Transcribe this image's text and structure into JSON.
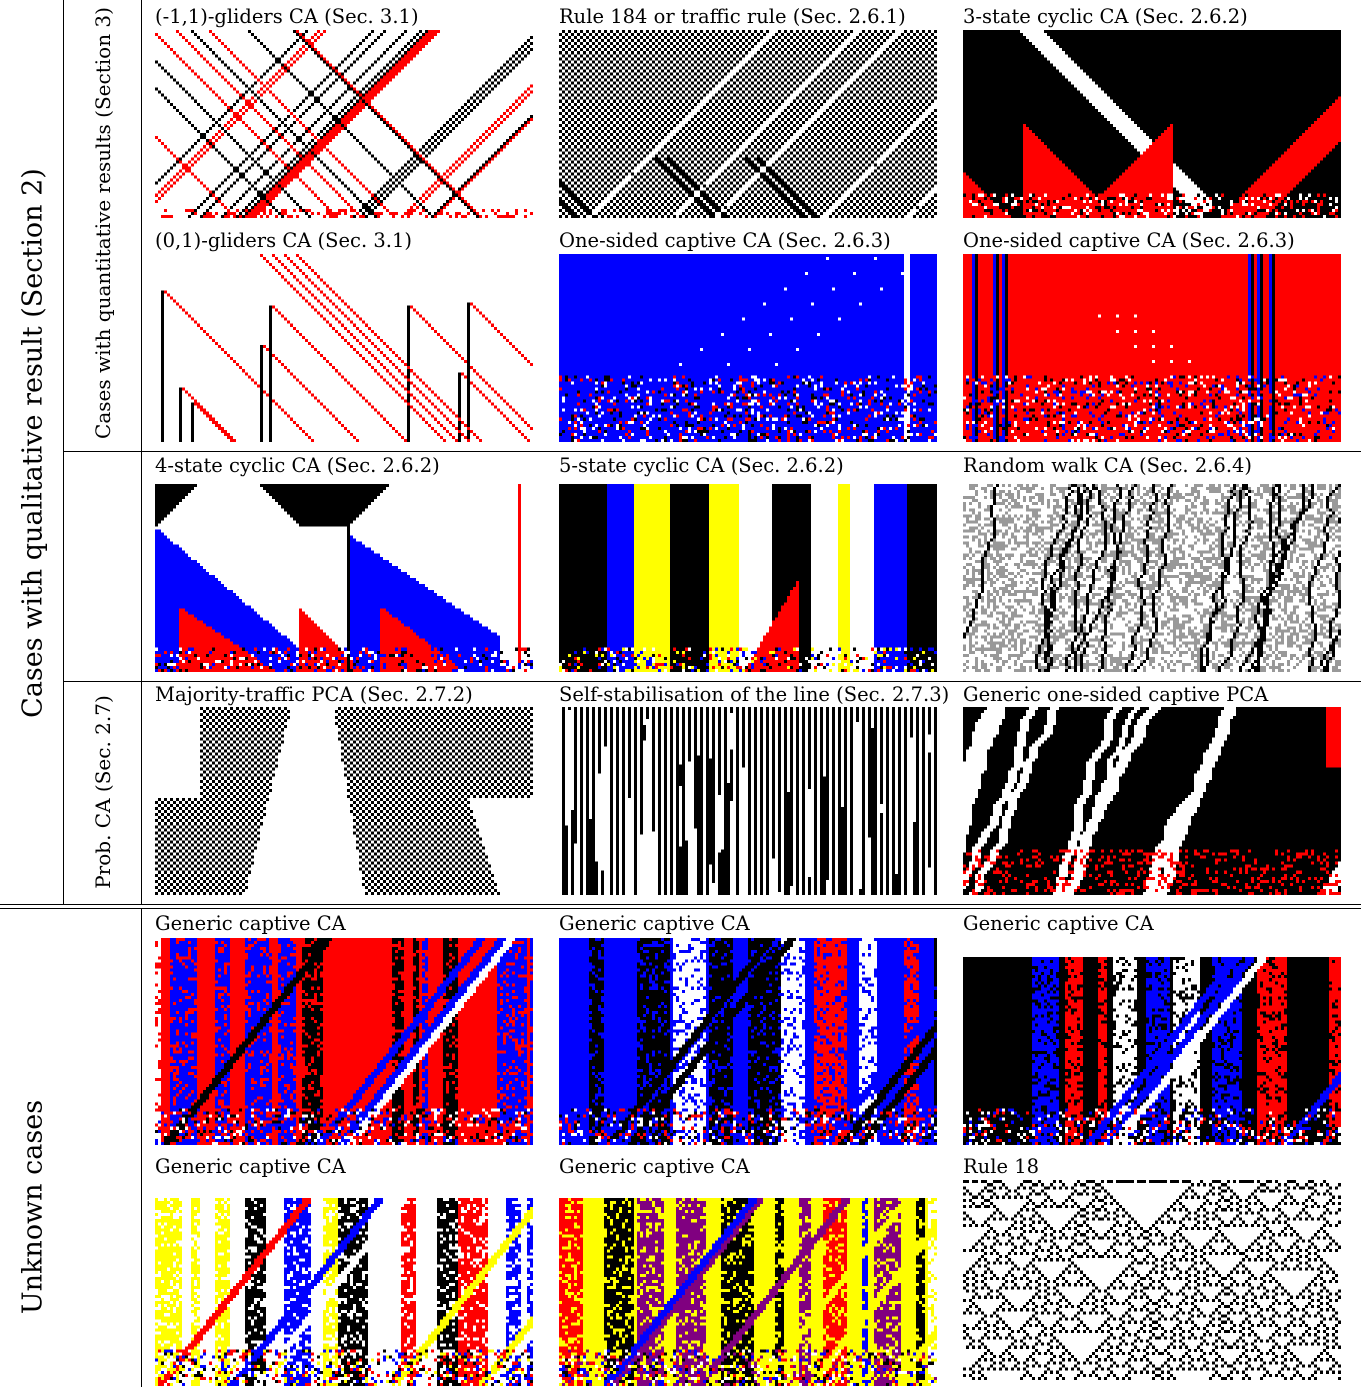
{
  "outer_labels": {
    "qualitative": "Cases with qualitative result (Section 2)",
    "unknown": "Unknown cases"
  },
  "inner_labels": {
    "quantitative": "Cases with quantitative results (Section 3)",
    "probabilistic": "Prob. CA (Sec. 2.7)"
  },
  "panels": [
    {
      "title": "(-1,1)-gliders CA (Sec. 3.1)",
      "style": "gliders-diag",
      "palette": [
        "#ffffff",
        "#000000",
        "#ff0000"
      ]
    },
    {
      "title": "Rule 184 or traffic rule (Sec. 2.6.1)",
      "style": "traffic",
      "palette": [
        "#ffffff",
        "#000000"
      ]
    },
    {
      "title": "3-state cyclic CA (Sec. 2.6.2)",
      "style": "cyclic3",
      "palette": [
        "#ffffff",
        "#000000",
        "#ff0000"
      ]
    },
    {
      "title": "(0,1)-gliders CA (Sec. 3.1)",
      "style": "gliders-vert",
      "palette": [
        "#ffffff",
        "#000000",
        "#ff0000"
      ]
    },
    {
      "title": "One-sided captive CA (Sec. 2.6.3)",
      "style": "captive-blue",
      "palette": [
        "#ffffff",
        "#000000",
        "#ff0000",
        "#0000ff"
      ]
    },
    {
      "title": "One-sided captive CA (Sec. 2.6.3)",
      "style": "captive-red",
      "palette": [
        "#ffffff",
        "#000000",
        "#ff0000",
        "#0000ff"
      ]
    },
    {
      "title": "4-state cyclic CA (Sec. 2.6.2)",
      "style": "cyclic4",
      "palette": [
        "#ffffff",
        "#000000",
        "#0000ff",
        "#ff0000"
      ]
    },
    {
      "title": "5-state cyclic CA (Sec. 2.6.2)",
      "style": "cyclic5",
      "palette": [
        "#ffffff",
        "#000000",
        "#0000ff",
        "#ff0000",
        "#ffff00"
      ]
    },
    {
      "title": "Random walk CA (Sec. 2.6.4)",
      "style": "randomwalk",
      "palette": [
        "#ffffff",
        "#000000",
        "#999999"
      ]
    },
    {
      "title": "Majority-traffic PCA (Sec. 2.7.2)",
      "style": "majority",
      "palette": [
        "#ffffff",
        "#000000"
      ]
    },
    {
      "title": "Self-stabilisation of the line (Sec. 2.7.3)",
      "style": "selfstab",
      "palette": [
        "#ffffff",
        "#000000"
      ]
    },
    {
      "title": "Generic one-sided captive PCA",
      "style": "pca-captive",
      "palette": [
        "#ffffff",
        "#000000",
        "#ff0000"
      ]
    },
    {
      "title": "Generic captive CA",
      "style": "captive-a",
      "palette": [
        "#ffffff",
        "#000000",
        "#ff0000",
        "#0000ff"
      ]
    },
    {
      "title": "Generic captive CA",
      "style": "captive-b",
      "palette": [
        "#ffffff",
        "#000000",
        "#ff0000",
        "#0000ff"
      ]
    },
    {
      "title": "Generic captive CA",
      "style": "captive-c",
      "palette": [
        "#ffffff",
        "#000000",
        "#ff0000",
        "#0000ff"
      ]
    },
    {
      "title": "Generic captive CA",
      "style": "captive-d",
      "palette": [
        "#ffffff",
        "#000000",
        "#ff0000",
        "#0000ff",
        "#ffff00"
      ]
    },
    {
      "title": "Generic captive CA",
      "style": "captive-e",
      "palette": [
        "#ffffff",
        "#000000",
        "#ff0000",
        "#0000ff",
        "#ffff00",
        "#800080"
      ]
    },
    {
      "title": "Rule 18",
      "style": "rule18",
      "palette": [
        "#ffffff",
        "#000000"
      ]
    }
  ]
}
